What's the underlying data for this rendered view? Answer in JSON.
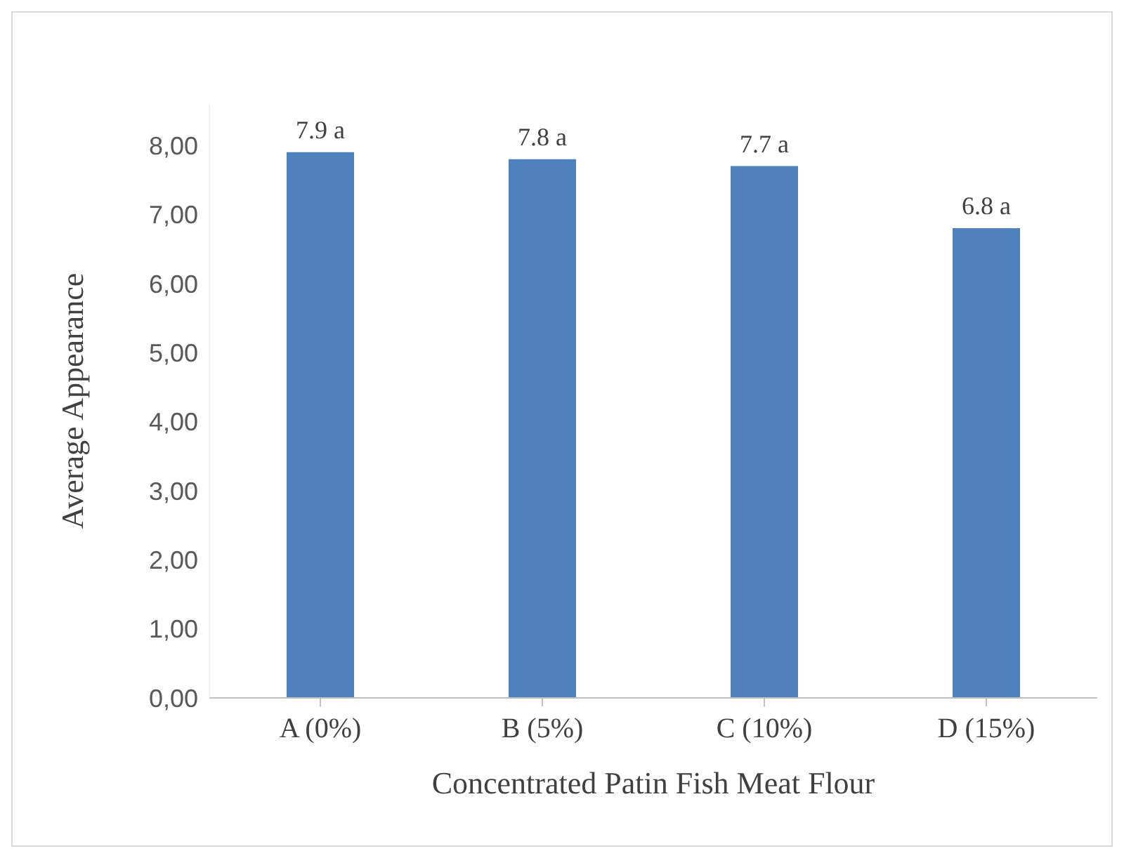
{
  "chart_data": {
    "type": "bar",
    "xlabel": "Concentrated Patin Fish Meat Flour",
    "ylabel": "Average Appearance",
    "categories": [
      "A (0%)",
      "B (5%)",
      "C (10%)",
      "D (15%)"
    ],
    "values": [
      7.9,
      7.8,
      7.7,
      6.8
    ],
    "value_labels": [
      "7.9 a",
      "7.8 a",
      "7.7 a",
      "6.8 a"
    ],
    "color": "#4f81bd",
    "ylim": [
      0,
      8.6
    ],
    "yticks": [
      {
        "value": 0,
        "label": "0,00"
      },
      {
        "value": 1,
        "label": "1,00"
      },
      {
        "value": 2,
        "label": "2,00"
      },
      {
        "value": 3,
        "label": "3,00"
      },
      {
        "value": 4,
        "label": "4,00"
      },
      {
        "value": 5,
        "label": "5,00"
      },
      {
        "value": 6,
        "label": "6,00"
      },
      {
        "value": 7,
        "label": "7,00"
      },
      {
        "value": 8,
        "label": "8,00"
      }
    ],
    "grid": false,
    "legend": false
  }
}
